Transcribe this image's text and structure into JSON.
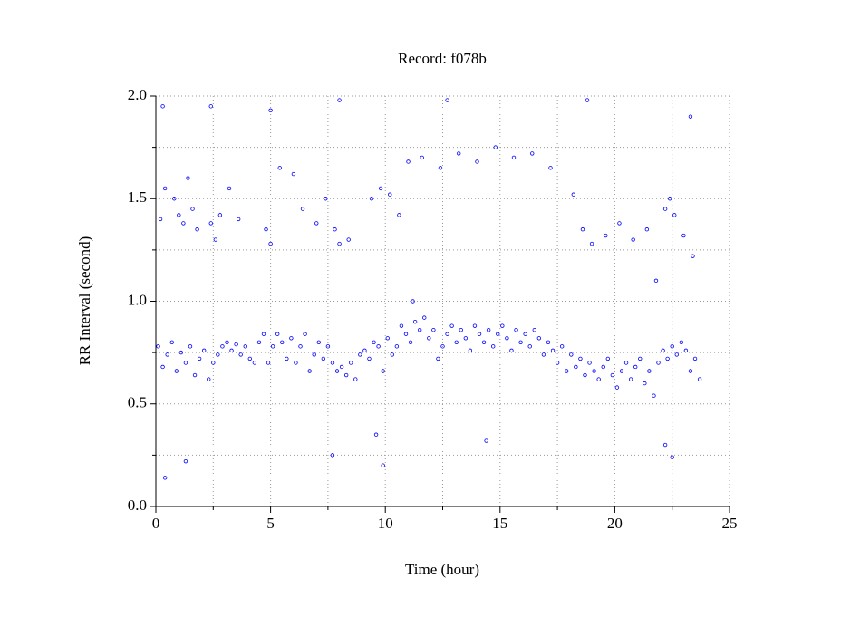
{
  "chart_data": {
    "type": "scatter",
    "title": "Record:  f078b",
    "x_label": "Time (hour)",
    "y_label": "RR Interval (second)",
    "xlim": [
      0,
      25
    ],
    "ylim": [
      0,
      2
    ],
    "xticks": [
      0,
      5,
      10,
      15,
      20,
      25
    ],
    "yticks": [
      {
        "value": 0,
        "label": "0.0"
      },
      {
        "value": 0.5,
        "label": "0.5"
      },
      {
        "value": 1,
        "label": "1.0"
      },
      {
        "value": 1.5,
        "label": "1.5"
      },
      {
        "value": 2,
        "label": "2.0"
      }
    ],
    "minor_xticks": [
      2.5,
      7.5,
      12.5,
      17.5,
      22.5
    ],
    "minor_yticks": [
      0.25,
      0.75,
      1.25,
      1.75
    ],
    "grid": true,
    "series": [
      {
        "color": "#0000ff",
        "x": [
          0.1,
          0.3,
          0.5,
          0.7,
          0.9,
          1.1,
          1.3,
          1.5,
          1.7,
          1.9,
          2.1,
          2.3,
          2.5,
          2.7,
          2.9,
          3.1,
          3.3,
          3.5,
          3.7,
          3.9,
          4.1,
          4.3,
          4.5,
          4.7,
          4.9,
          5.1,
          5.3,
          5.5,
          5.7,
          5.9,
          6.1,
          6.3,
          6.5,
          6.7,
          6.9,
          7.1,
          7.3,
          7.5,
          7.7,
          7.9,
          8.1,
          8.3,
          8.5,
          8.7,
          8.9,
          9.1,
          9.3,
          9.5,
          9.7,
          9.9,
          10.1,
          10.3,
          10.5,
          10.7,
          10.9,
          11.1,
          11.3,
          11.5,
          11.7,
          11.9,
          12.1,
          12.3,
          12.5,
          12.7,
          12.9,
          13.1,
          13.3,
          13.5,
          13.7,
          13.9,
          14.1,
          14.3,
          14.5,
          14.7,
          14.9,
          15.1,
          15.3,
          15.5,
          15.7,
          15.9,
          16.1,
          16.3,
          16.5,
          16.7,
          16.9,
          17.1,
          17.3,
          17.5,
          17.7,
          17.9,
          18.1,
          18.3,
          18.5,
          18.7,
          18.9,
          19.1,
          19.3,
          19.5,
          19.7,
          19.9,
          20.1,
          20.3,
          20.5,
          20.7,
          20.9,
          21.1,
          21.3,
          21.5,
          21.7,
          21.9,
          22.1,
          22.3,
          22.5,
          22.7,
          22.9,
          23.1,
          23.3,
          23.5,
          23.7,
          0.2,
          0.4,
          0.8,
          1.0,
          1.2,
          1.4,
          1.6,
          1.8,
          2.4,
          2.6,
          2.8,
          3.2,
          3.6,
          4.8,
          5.0,
          5.4,
          6.0,
          6.4,
          7.0,
          7.4,
          7.8,
          8.0,
          8.4,
          9.4,
          9.8,
          10.2,
          10.6,
          11.0,
          11.6,
          12.4,
          13.2,
          14.0,
          14.8,
          15.6,
          16.4,
          17.2,
          18.2,
          18.6,
          19.0,
          19.6,
          20.2,
          20.8,
          21.4,
          21.8,
          22.2,
          22.4,
          22.6,
          23.0,
          23.4,
          0.3,
          0.4,
          1.3,
          2.4,
          5.0,
          7.7,
          8.0,
          9.6,
          9.9,
          11.2,
          12.7,
          14.4,
          18.8,
          22.2,
          22.5,
          23.3
        ],
        "values": [
          0.78,
          0.68,
          0.74,
          0.8,
          0.66,
          0.75,
          0.7,
          0.78,
          0.64,
          0.72,
          0.76,
          0.62,
          0.7,
          0.74,
          0.78,
          0.8,
          0.76,
          0.79,
          0.74,
          0.78,
          0.72,
          0.7,
          0.8,
          0.84,
          0.7,
          0.78,
          0.84,
          0.8,
          0.72,
          0.82,
          0.7,
          0.78,
          0.84,
          0.66,
          0.74,
          0.8,
          0.72,
          0.78,
          0.7,
          0.66,
          0.68,
          0.64,
          0.7,
          0.62,
          0.74,
          0.76,
          0.72,
          0.8,
          0.78,
          0.66,
          0.82,
          0.74,
          0.78,
          0.88,
          0.84,
          0.8,
          0.9,
          0.86,
          0.92,
          0.82,
          0.86,
          0.72,
          0.78,
          0.84,
          0.88,
          0.8,
          0.86,
          0.82,
          0.76,
          0.88,
          0.84,
          0.8,
          0.86,
          0.78,
          0.84,
          0.88,
          0.82,
          0.76,
          0.86,
          0.8,
          0.84,
          0.78,
          0.86,
          0.82,
          0.74,
          0.8,
          0.76,
          0.7,
          0.78,
          0.66,
          0.74,
          0.68,
          0.72,
          0.64,
          0.7,
          0.66,
          0.62,
          0.68,
          0.72,
          0.64,
          0.58,
          0.66,
          0.7,
          0.62,
          0.68,
          0.72,
          0.6,
          0.66,
          0.54,
          0.7,
          0.76,
          0.72,
          0.78,
          0.74,
          0.8,
          0.76,
          0.66,
          0.72,
          0.62,
          1.4,
          1.55,
          1.5,
          1.42,
          1.38,
          1.6,
          1.45,
          1.35,
          1.38,
          1.3,
          1.42,
          1.55,
          1.4,
          1.35,
          1.28,
          1.65,
          1.62,
          1.45,
          1.38,
          1.5,
          1.35,
          1.28,
          1.3,
          1.5,
          1.55,
          1.52,
          1.42,
          1.68,
          1.7,
          1.65,
          1.72,
          1.68,
          1.75,
          1.7,
          1.72,
          1.65,
          1.52,
          1.35,
          1.28,
          1.32,
          1.38,
          1.3,
          1.35,
          1.1,
          1.45,
          1.5,
          1.42,
          1.32,
          1.22,
          1.95,
          0.14,
          0.22,
          1.95,
          1.93,
          0.25,
          1.98,
          0.35,
          0.2,
          1.0,
          1.98,
          0.32,
          1.98,
          0.3,
          0.24,
          1.9
        ]
      }
    ]
  }
}
